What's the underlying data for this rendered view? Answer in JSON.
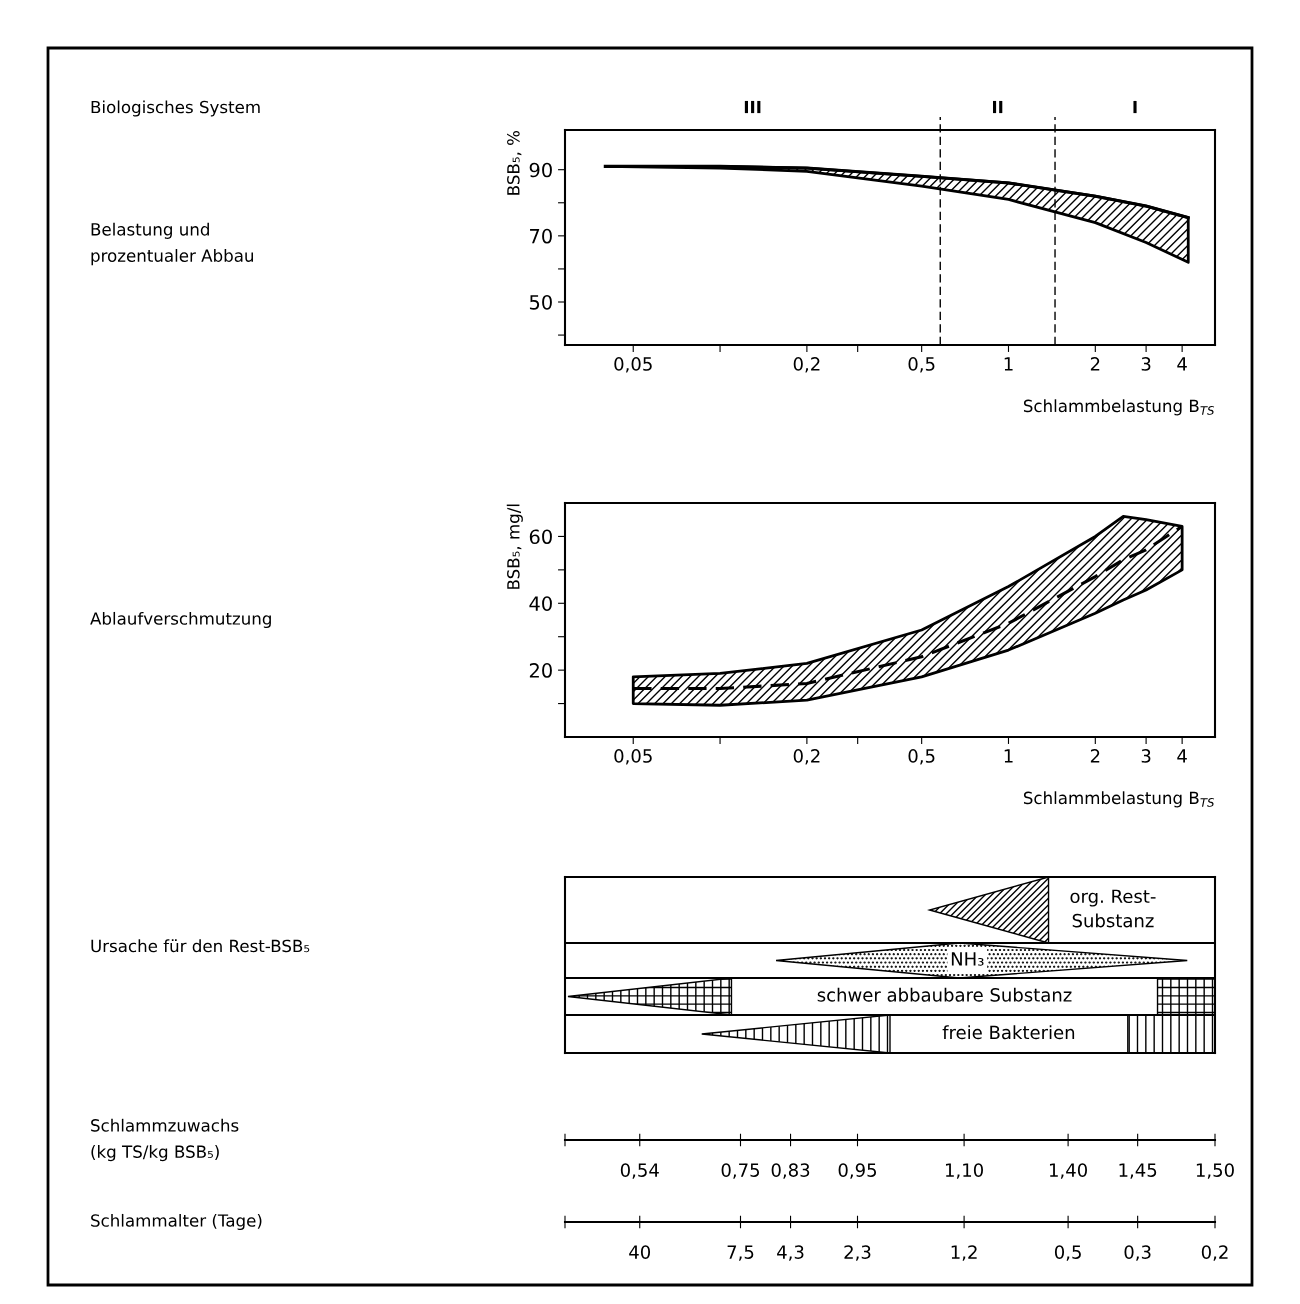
{
  "chart_data": [
    {
      "type": "line",
      "xlabel": "Schlammbelastung B$_{TS}$",
      "ylabel": "BSB₅, %",
      "log": "x",
      "xlim": [
        0.029,
        5.2
      ],
      "ylim": [
        37,
        102
      ],
      "xticks": [
        {
          "value": 0.05,
          "label": "0,05"
        },
        {
          "value": 0.1,
          "label": null
        },
        {
          "value": 0.2,
          "label": "0,2"
        },
        {
          "value": 0.3,
          "label": null
        },
        {
          "value": 0.5,
          "label": "0,5"
        },
        1,
        2,
        3,
        4
      ],
      "yticks": [
        {
          "value": 40,
          "label": null
        },
        50,
        {
          "value": 60,
          "label": null
        },
        70,
        {
          "value": 80,
          "label": null
        },
        90
      ],
      "series": [
        {
          "color": "#000000",
          "line_style": "solid",
          "x": [
            0.04,
            0.1,
            0.2,
            0.5,
            1,
            2,
            3,
            4.2
          ],
          "values": [
            91,
            91,
            90.5,
            88,
            86,
            82,
            79,
            75.5
          ],
          "upper": [
            91,
            91,
            90.5,
            88,
            86,
            82,
            79,
            75.5
          ],
          "lower": [
            91,
            90.5,
            89.5,
            85,
            81,
            74,
            68,
            62
          ]
        }
      ],
      "ref_lines": [
        {
          "axis": "x",
          "value": 0.58,
          "line_style": "dashed",
          "color": "#000000"
        },
        {
          "axis": "x",
          "value": 1.45,
          "line_style": "dashed",
          "color": "#000000"
        }
      ],
      "annotations": [
        "Biologisches System",
        "Belastung und\nprozentualer Abbau",
        "III",
        "II",
        "I"
      ]
    },
    {
      "type": "line",
      "xlabel": "Schlammbelastung B$_{TS}$",
      "ylabel": "BSB₅, mg/l",
      "log": "x",
      "xlim": [
        0.029,
        5.2
      ],
      "ylim": [
        0,
        70
      ],
      "xticks": [
        {
          "value": 0.05,
          "label": "0,05"
        },
        {
          "value": 0.1,
          "label": null
        },
        {
          "value": 0.2,
          "label": "0,2"
        },
        {
          "value": 0.3,
          "label": null
        },
        {
          "value": 0.5,
          "label": "0,5"
        },
        1,
        2,
        3,
        4
      ],
      "yticks": [
        {
          "value": 10,
          "label": null
        },
        20,
        {
          "value": 30,
          "label": null
        },
        40,
        {
          "value": 50,
          "label": null
        },
        60
      ],
      "series": [
        {
          "color": "#000000",
          "line_style": "dashed",
          "x": [
            0.05,
            0.1,
            0.2,
            0.5,
            1,
            2,
            2.5,
            3,
            4
          ],
          "values": [
            14.5,
            14.5,
            16,
            24,
            34,
            48,
            53,
            56,
            63
          ],
          "upper": [
            18,
            19,
            22,
            32,
            45,
            60,
            66,
            65,
            63
          ],
          "lower": [
            10,
            9.5,
            11,
            18,
            26,
            37,
            41,
            44,
            50
          ]
        }
      ],
      "annotations": [
        "Ablaufverschmutzung"
      ]
    },
    {
      "type": "other",
      "title": "Ursache für den Rest-BSB₅",
      "annotations": [
        "org. Rest-\nSubstanz",
        "NH₃",
        "schwer abbaubare Substanz",
        "freie Bakterien"
      ]
    },
    {
      "type": "other",
      "title": "Schlammzuwachs\n(kg TS/kg BSB₅)",
      "annotations": [
        "0,54",
        "0,75",
        "0,83",
        "0,95",
        "1,10",
        "1,40",
        "1,45",
        "1,50"
      ]
    },
    {
      "type": "other",
      "title": "Schlammalter (Tage)",
      "annotations": [
        "40",
        "7,5",
        "4,3",
        "2,3",
        "1,2",
        "0,5",
        "0,3",
        "0,2"
      ]
    }
  ]
}
